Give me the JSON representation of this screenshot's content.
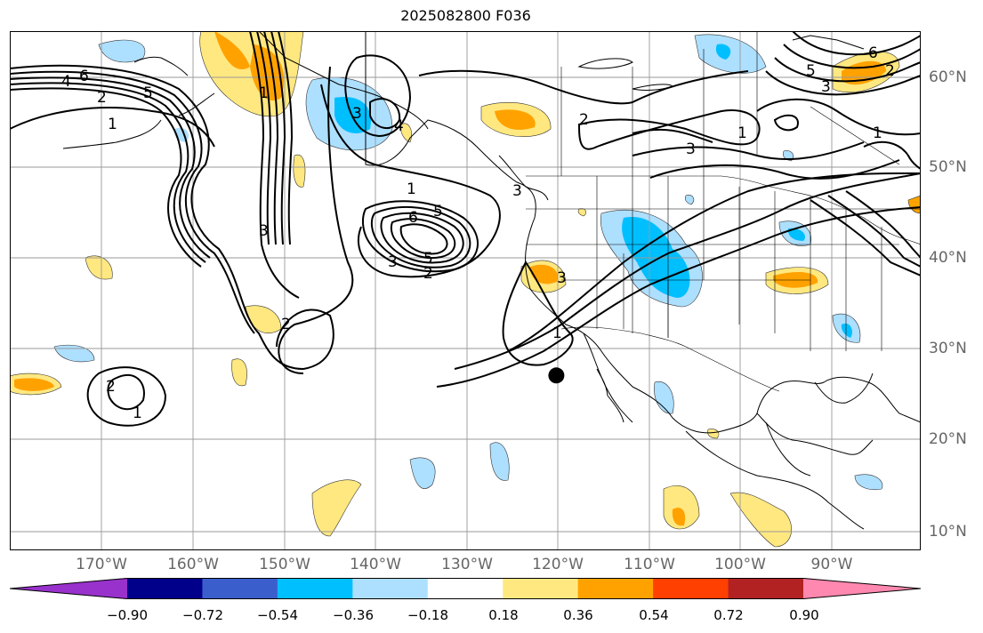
{
  "title": "2025082800 F036",
  "map": {
    "longitude_labels": [
      "170°W",
      "160°W",
      "150°W",
      "140°W",
      "130°W",
      "120°W",
      "110°W",
      "100°W",
      "90°W"
    ],
    "latitude_labels": [
      "60°N",
      "50°N",
      "40°N",
      "30°N",
      "20°N",
      "10°N"
    ],
    "contour_labels": [
      "6",
      "4",
      "2",
      "5",
      "3",
      "2",
      "3",
      "2",
      "1",
      "3",
      "4",
      "5",
      "6",
      "1",
      "2",
      "3",
      "5",
      "1",
      "2",
      "1",
      "3",
      "3",
      "5",
      "6",
      "2",
      "3",
      "1",
      "1",
      "1"
    ],
    "marker": {
      "name": "point-marker",
      "lon": -120,
      "lat": 27.2,
      "color": "#000000"
    },
    "grid": true,
    "projection": "plate-carree",
    "extent": {
      "lon": [
        -180,
        -80
      ],
      "lat": [
        8,
        65
      ]
    }
  },
  "colorbar": {
    "colors": [
      "#9932cc",
      "#00008b",
      "#3a5fcd",
      "#00bfff",
      "#addfff",
      "#ffffff",
      "#ffe880",
      "#ffa200",
      "#ff4000",
      "#b22222",
      "#ff88b0"
    ],
    "tick_labels": [
      "−0.90",
      "−0.72",
      "−0.54",
      "−0.36",
      "−0.18",
      "0.18",
      "0.36",
      "0.54",
      "0.72",
      "0.90"
    ],
    "extend": "both"
  }
}
